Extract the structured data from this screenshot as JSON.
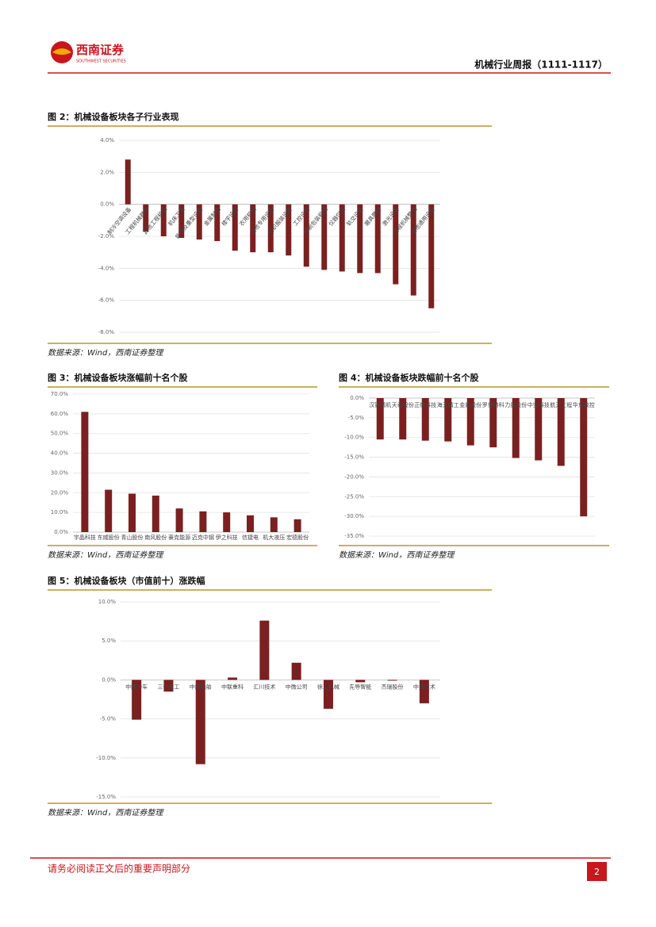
{
  "header": {
    "logo_cn": "西南证券",
    "logo_en": "SOUTHWEST SECURITIES",
    "report_title": "机械行业周报（1111-1117）"
  },
  "chart_data": [
    {
      "type": "bar",
      "title": "图 2：机械设备板块各子行业表现",
      "source": "数据来源：Wind，西南证券整理",
      "color": "#7b2020",
      "grid": true,
      "categories": [
        "制冷空调设备",
        "工程机械器件",
        "其他工程机械",
        "机床工具",
        "能源及重型设备",
        "金属制品",
        "楼宇设备",
        "农用机械",
        "其他专用设备",
        "纺织服装设备",
        "工控设备",
        "印刷包装机械",
        "仪器仪表",
        "轨交设备",
        "磨具磨料",
        "激光设备",
        "工程机械整机",
        "其他通用设备"
      ],
      "values": [
        2.8,
        -1.7,
        -2.0,
        -2.1,
        -2.2,
        -2.3,
        -2.9,
        -3.0,
        -3.0,
        -3.2,
        -3.9,
        -4.1,
        -4.2,
        -4.3,
        -4.3,
        -5.0,
        -5.7,
        -6.5
      ],
      "ylim": [
        -8,
        4
      ],
      "yticks": [
        {
          "value": 4,
          "label": "4.0%"
        },
        {
          "value": 2,
          "label": "2.0%"
        },
        {
          "value": 0,
          "label": "0.0%"
        },
        {
          "value": -2,
          "label": "-2.0%"
        },
        {
          "value": -4,
          "label": "-4.0%"
        },
        {
          "value": -6,
          "label": "-6.0%"
        },
        {
          "value": -8,
          "label": "-8.0%"
        }
      ]
    },
    {
      "type": "bar",
      "title": "图 3：机械设备板块涨幅前十名个股",
      "source": "数据来源：Wind，西南证券整理",
      "color": "#7b2020",
      "grid": true,
      "categories": [
        "宇晶科技",
        "东威股份",
        "青山股份",
        "南风股份",
        "豪克能源",
        "迈克中钢",
        "伊之科技",
        "信捷电",
        "机大液压",
        "宏德股份"
      ],
      "values": [
        61,
        21.5,
        19.5,
        18.5,
        12,
        10.5,
        10,
        8.5,
        7.5,
        6.5
      ],
      "ylim": [
        0,
        70
      ],
      "yticks": [
        {
          "value": 0,
          "label": "0.0%"
        },
        {
          "value": 10,
          "label": "10.0%"
        },
        {
          "value": 20,
          "label": "20.0%"
        },
        {
          "value": 30,
          "label": "30.0%"
        },
        {
          "value": 40,
          "label": "40.0%"
        },
        {
          "value": 50,
          "label": "50.0%"
        },
        {
          "value": 60,
          "label": "60.0%"
        },
        {
          "value": 70,
          "label": "70.0%"
        }
      ]
    },
    {
      "type": "bar",
      "title": "图 4：机械设备板块跌幅前十名个股",
      "source": "数据来源：Wind，西南证券整理",
      "color": "#7b2020",
      "grid": true,
      "categories": [
        "汉钟精机",
        "天奇股份",
        "正帆科技",
        "海天精工",
        "金盾股份",
        "罗博特科",
        "力星股份",
        "中坚科技",
        "航天工程",
        "华东数控"
      ],
      "values": [
        -10.5,
        -10.5,
        -10.8,
        -11,
        -12,
        -12.5,
        -15.2,
        -15.8,
        -17.2,
        -30
      ],
      "ylim": [
        -35,
        0
      ],
      "yticks": [
        {
          "value": 0,
          "label": "0.0%"
        },
        {
          "value": -5,
          "label": "-5.0%"
        },
        {
          "value": -10,
          "label": "-10.0%"
        },
        {
          "value": -15,
          "label": "-15.0%"
        },
        {
          "value": -20,
          "label": "-20.0%"
        },
        {
          "value": -25,
          "label": "-25.0%"
        },
        {
          "value": -30,
          "label": "-30.0%"
        },
        {
          "value": -35,
          "label": "-35.0%"
        }
      ]
    },
    {
      "type": "bar",
      "title": "图 5：机械设备板块（市值前十）涨跌幅",
      "source": "数据来源：Wind，西南证券整理",
      "color": "#7b2020",
      "grid": true,
      "categories": [
        "中国中车",
        "三一重工",
        "中国船舶",
        "中联重科",
        "汇川技术",
        "中微公司",
        "徐工机械",
        "先导智能",
        "杰瑞股份",
        "中控技术"
      ],
      "values": [
        -5.1,
        -1.5,
        -10.8,
        0.3,
        7.6,
        2.2,
        -3.7,
        -0.3,
        -0.1,
        -3.0
      ],
      "ylim": [
        -15,
        10
      ],
      "yticks": [
        {
          "value": 10,
          "label": "10.0%"
        },
        {
          "value": 5,
          "label": "5.0%"
        },
        {
          "value": 0,
          "label": "0.0%"
        },
        {
          "value": -5,
          "label": "-5.0%"
        },
        {
          "value": -10,
          "label": "-10.0%"
        },
        {
          "value": -15,
          "label": "-15.0%"
        }
      ]
    }
  ],
  "footer": {
    "disclaimer": "请务必阅读正文后的重要声明部分",
    "page": "2"
  }
}
